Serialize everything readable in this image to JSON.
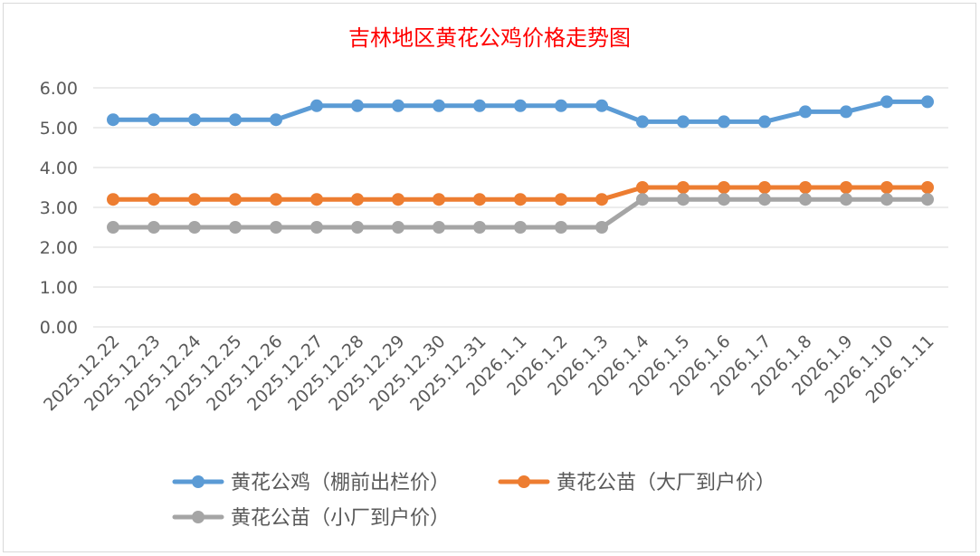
{
  "chart_data": {
    "type": "line",
    "title": "吉林地区黄花公鸡价格走势图",
    "title_color": "#ff0000",
    "xlabel": "",
    "ylabel": "",
    "ylim": [
      0,
      6
    ],
    "yticks": [
      "0.00",
      "1.00",
      "2.00",
      "3.00",
      "4.00",
      "5.00",
      "6.00"
    ],
    "grid": true,
    "legend_position": "bottom",
    "categories": [
      "2025.12.22",
      "2025.12.23",
      "2025.12.24",
      "2025.12.25",
      "2025.12.26",
      "2025.12.27",
      "2025.12.28",
      "2025.12.29",
      "2025.12.30",
      "2025.12.31",
      "2026.1.1",
      "2026.1.2",
      "2026.1.3",
      "2026.1.4",
      "2026.1.5",
      "2026.1.6",
      "2026.1.7",
      "2026.1.8",
      "2026.1.9",
      "2026.1.10",
      "2026.1.11"
    ],
    "series": [
      {
        "name": "黄花公鸡（棚前出栏价）",
        "color": "#5b9bd5",
        "values": [
          5.2,
          5.2,
          5.2,
          5.2,
          5.2,
          5.55,
          5.55,
          5.55,
          5.55,
          5.55,
          5.55,
          5.55,
          5.55,
          5.15,
          5.15,
          5.15,
          5.15,
          5.4,
          5.4,
          5.65,
          5.65
        ]
      },
      {
        "name": "黄花公苗（大厂到户价）",
        "color": "#ed7d31",
        "values": [
          3.2,
          3.2,
          3.2,
          3.2,
          3.2,
          3.2,
          3.2,
          3.2,
          3.2,
          3.2,
          3.2,
          3.2,
          3.2,
          3.5,
          3.5,
          3.5,
          3.5,
          3.5,
          3.5,
          3.5,
          3.5
        ]
      },
      {
        "name": "黄花公苗（小厂到户价）",
        "color": "#a5a5a5",
        "values": [
          2.5,
          2.5,
          2.5,
          2.5,
          2.5,
          2.5,
          2.5,
          2.5,
          2.5,
          2.5,
          2.5,
          2.5,
          2.5,
          3.2,
          3.2,
          3.2,
          3.2,
          3.2,
          3.2,
          3.2,
          3.2
        ]
      }
    ]
  }
}
